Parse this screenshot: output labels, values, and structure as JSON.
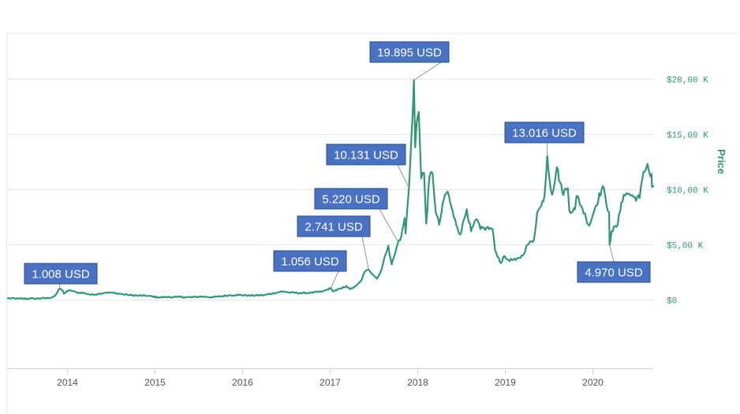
{
  "colors": {
    "line": "#2e9a6f",
    "axis_label": "#2e9a6f",
    "annotation_fill": "#4a72c4",
    "annotation_text": "#ffffff",
    "grid": "#e6e6e6"
  },
  "chart_data": {
    "type": "line",
    "title": "",
    "xlabel": "",
    "ylabel": "Price",
    "x_ticks": [
      "2014",
      "2015",
      "2016",
      "2017",
      "2018",
      "2019",
      "2020"
    ],
    "y_ticks": [
      "$0",
      "$5,00 K",
      "$10,00 K",
      "$15,00 K",
      "$20,00 K"
    ],
    "y_tick_values": [
      0,
      5000,
      10000,
      15000,
      20000
    ],
    "xlim": [
      "2013-04-28",
      "2020-09-10"
    ],
    "ylim": [
      -6200,
      20000
    ],
    "grid": true,
    "series": [
      {
        "points": [
          [
            "2013-04-28",
            130
          ],
          [
            "2013-06-15",
            100
          ],
          [
            "2013-08-15",
            110
          ],
          [
            "2013-10-15",
            150
          ],
          [
            "2013-11-10",
            350
          ],
          [
            "2013-11-20",
            650
          ],
          [
            "2013-11-30",
            1008
          ],
          [
            "2013-12-10",
            900
          ],
          [
            "2013-12-18",
            550
          ],
          [
            "2013-12-28",
            750
          ],
          [
            "2014-01-15",
            850
          ],
          [
            "2014-02-10",
            650
          ],
          [
            "2014-03-15",
            600
          ],
          [
            "2014-04-10",
            450
          ],
          [
            "2014-05-15",
            550
          ],
          [
            "2014-06-10",
            650
          ],
          [
            "2014-07-15",
            620
          ],
          [
            "2014-08-20",
            500
          ],
          [
            "2014-09-20",
            420
          ],
          [
            "2014-10-20",
            380
          ],
          [
            "2014-12-01",
            360
          ],
          [
            "2015-01-14",
            220
          ],
          [
            "2015-02-15",
            240
          ],
          [
            "2015-04-01",
            250
          ],
          [
            "2015-06-01",
            230
          ],
          [
            "2015-07-15",
            290
          ],
          [
            "2015-09-01",
            230
          ],
          [
            "2015-11-04",
            400
          ],
          [
            "2015-12-15",
            440
          ],
          [
            "2016-02-01",
            380
          ],
          [
            "2016-04-01",
            420
          ],
          [
            "2016-06-17",
            760
          ],
          [
            "2016-07-15",
            660
          ],
          [
            "2016-09-01",
            600
          ],
          [
            "2016-10-15",
            640
          ],
          [
            "2016-12-01",
            750
          ],
          [
            "2017-01-04",
            1056
          ],
          [
            "2017-01-12",
            780
          ],
          [
            "2017-02-15",
            1000
          ],
          [
            "2017-03-10",
            1250
          ],
          [
            "2017-03-25",
            950
          ],
          [
            "2017-04-20",
            1250
          ],
          [
            "2017-05-10",
            1700
          ],
          [
            "2017-05-25",
            2500
          ],
          [
            "2017-06-11",
            2741
          ],
          [
            "2017-07-16",
            1900
          ],
          [
            "2017-08-05",
            2800
          ],
          [
            "2017-08-20",
            4100
          ],
          [
            "2017-09-01",
            4900
          ],
          [
            "2017-09-15",
            3200
          ],
          [
            "2017-10-01",
            4300
          ],
          [
            "2017-10-12",
            5220
          ],
          [
            "2017-10-25",
            5700
          ],
          [
            "2017-11-08",
            7400
          ],
          [
            "2017-11-12",
            6000
          ],
          [
            "2017-11-26",
            10131
          ],
          [
            "2017-12-07",
            15000
          ],
          [
            "2017-12-17",
            19895
          ],
          [
            "2017-12-22",
            13800
          ],
          [
            "2017-12-28",
            16000
          ],
          [
            "2018-01-06",
            17000
          ],
          [
            "2018-01-16",
            11000
          ],
          [
            "2018-01-28",
            11500
          ],
          [
            "2018-02-06",
            6900
          ],
          [
            "2018-02-20",
            11200
          ],
          [
            "2018-03-05",
            11400
          ],
          [
            "2018-03-18",
            7900
          ],
          [
            "2018-04-01",
            6800
          ],
          [
            "2018-04-25",
            9500
          ],
          [
            "2018-05-06",
            9800
          ],
          [
            "2018-06-01",
            7500
          ],
          [
            "2018-06-28",
            5900
          ],
          [
            "2018-07-25",
            8200
          ],
          [
            "2018-08-12",
            6200
          ],
          [
            "2018-09-05",
            7300
          ],
          [
            "2018-09-20",
            6400
          ],
          [
            "2018-10-15",
            6500
          ],
          [
            "2018-11-10",
            6400
          ],
          [
            "2018-11-20",
            4500
          ],
          [
            "2018-12-15",
            3300
          ],
          [
            "2018-12-25",
            3900
          ],
          [
            "2019-01-15",
            3600
          ],
          [
            "2019-02-15",
            3600
          ],
          [
            "2019-03-15",
            4000
          ],
          [
            "2019-04-05",
            5000
          ],
          [
            "2019-05-01",
            5400
          ],
          [
            "2019-05-15",
            7900
          ],
          [
            "2019-06-01",
            8500
          ],
          [
            "2019-06-15",
            9500
          ],
          [
            "2019-06-26",
            13016
          ],
          [
            "2019-07-05",
            11000
          ],
          [
            "2019-07-16",
            9500
          ],
          [
            "2019-08-05",
            12000
          ],
          [
            "2019-08-28",
            9700
          ],
          [
            "2019-09-20",
            10100
          ],
          [
            "2019-09-26",
            8100
          ],
          [
            "2019-10-20",
            8200
          ],
          [
            "2019-10-26",
            9400
          ],
          [
            "2019-11-15",
            8500
          ],
          [
            "2019-12-05",
            7400
          ],
          [
            "2019-12-18",
            6700
          ],
          [
            "2020-01-14",
            8500
          ],
          [
            "2020-02-13",
            10300
          ],
          [
            "2020-02-28",
            8600
          ],
          [
            "2020-03-10",
            7900
          ],
          [
            "2020-03-12",
            4970
          ],
          [
            "2020-03-20",
            6200
          ],
          [
            "2020-04-15",
            6800
          ],
          [
            "2020-04-30",
            8800
          ],
          [
            "2020-05-10",
            9500
          ],
          [
            "2020-06-01",
            9600
          ],
          [
            "2020-06-20",
            9300
          ],
          [
            "2020-07-15",
            9200
          ],
          [
            "2020-07-27",
            11000
          ],
          [
            "2020-08-05",
            11600
          ],
          [
            "2020-08-17",
            12300
          ],
          [
            "2020-08-25",
            11500
          ],
          [
            "2020-09-03",
            11400
          ],
          [
            "2020-09-05",
            10200
          ],
          [
            "2020-09-10",
            10300
          ]
        ]
      }
    ],
    "annotations": [
      {
        "label": "1.008 USD",
        "x": "2013-11-30",
        "y": 1008
      },
      {
        "label": "1.056 USD",
        "x": "2017-01-04",
        "y": 1056
      },
      {
        "label": "2.741 USD",
        "x": "2017-06-11",
        "y": 2741
      },
      {
        "label": "5.220 USD",
        "x": "2017-10-12",
        "y": 5220
      },
      {
        "label": "10.131 USD",
        "x": "2017-11-26",
        "y": 10131
      },
      {
        "label": "19.895 USD",
        "x": "2017-12-17",
        "y": 19895
      },
      {
        "label": "13.016 USD",
        "x": "2019-06-26",
        "y": 13016
      },
      {
        "label": "4.970 USD",
        "x": "2020-03-12",
        "y": 4970
      }
    ]
  }
}
